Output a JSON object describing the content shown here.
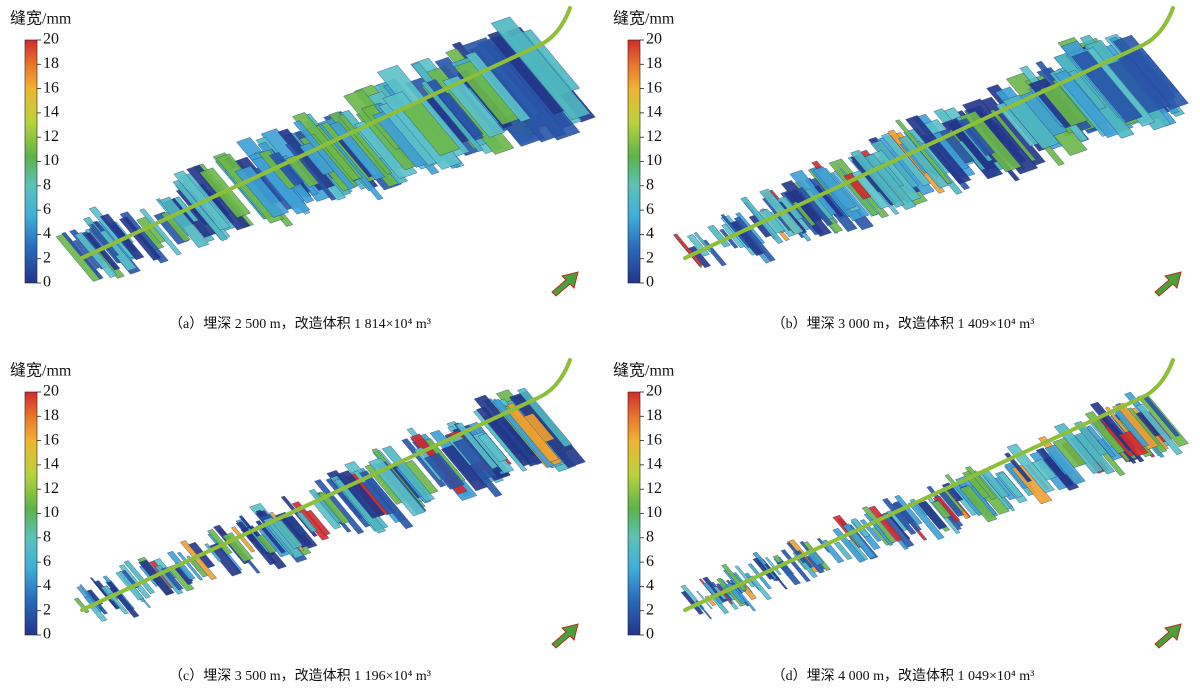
{
  "panels": [
    {
      "colorbar": {
        "label": "缝宽/mm",
        "ticks": [
          0,
          2,
          4,
          6,
          8,
          10,
          12,
          14,
          16,
          18,
          20
        ]
      },
      "caption": "（a）埋深 2 500 m，改造体积 1 814×10⁴ m³"
    },
    {
      "colorbar": {
        "label": "缝宽/mm",
        "ticks": [
          0,
          2,
          4,
          6,
          8,
          10,
          12,
          14,
          16,
          18,
          20
        ]
      },
      "caption": "（b）埋深 3 000 m，改造体积 1 409×10⁴ m³"
    },
    {
      "colorbar": {
        "label": "缝宽/mm",
        "ticks": [
          0,
          2,
          4,
          6,
          8,
          10,
          12,
          14,
          16,
          18,
          20
        ]
      },
      "caption": "（c）埋深 3 500 m，改造体积 1 196×10⁴ m³"
    },
    {
      "colorbar": {
        "label": "缝宽/mm",
        "ticks": [
          0,
          2,
          4,
          6,
          8,
          10,
          12,
          14,
          16,
          18,
          20
        ]
      },
      "caption": "（d）埋深 4 000 m，改造体积 1 049×10⁴ m³"
    }
  ]
}
